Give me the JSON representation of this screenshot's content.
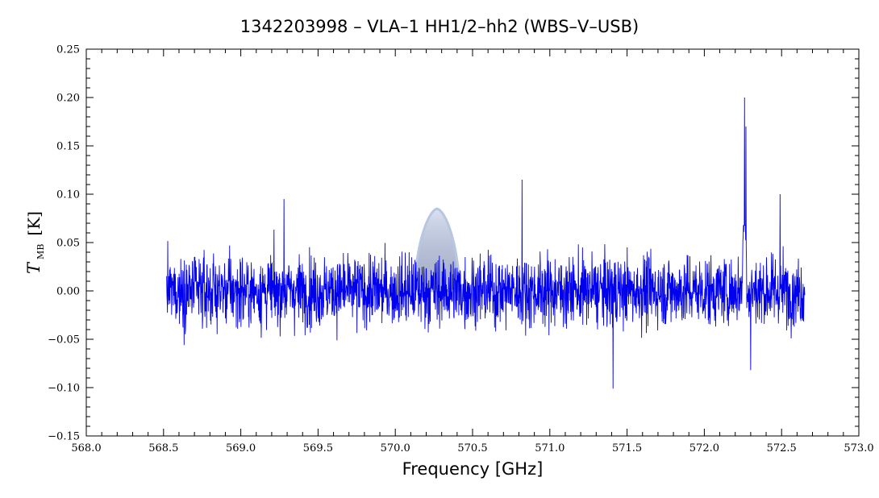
{
  "chart_data": {
    "type": "line",
    "title": "1342203998 – VLA–1 HH1/2–hh2 (WBS–V–USB)",
    "xlabel": "Frequency [GHz]",
    "ylabel": {
      "main": "T",
      "sub": "MB",
      "unit": "[K]"
    },
    "xlim": [
      568.0,
      573.0
    ],
    "ylim": [
      -0.15,
      0.25
    ],
    "x_ticks": [
      "568.0",
      "568.5",
      "569.0",
      "569.5",
      "570.0",
      "570.5",
      "571.0",
      "571.5",
      "572.0",
      "572.5",
      "573.0"
    ],
    "y_ticks": [
      "−0.15",
      "−0.10",
      "−0.05",
      "0.00",
      "0.05",
      "0.10",
      "0.15",
      "0.20",
      "0.25"
    ],
    "grid": false,
    "series": [
      {
        "color": "#0000ee",
        "x_range": [
          568.52,
          572.65
        ],
        "noise_rms": 0.02,
        "features": [
          {
            "x": 572.26,
            "y": 0.2
          },
          {
            "x": 572.27,
            "y": 0.17
          },
          {
            "x": 572.49,
            "y": 0.1
          },
          {
            "x": 570.82,
            "y": 0.115
          },
          {
            "x": 569.28,
            "y": 0.095
          },
          {
            "x": 571.41,
            "y": -0.101
          },
          {
            "x": 572.3,
            "y": -0.082
          }
        ]
      }
    ],
    "watermark": {
      "x_center": 570.27,
      "peak": 0.085,
      "color": "#9fb3d8"
    }
  }
}
